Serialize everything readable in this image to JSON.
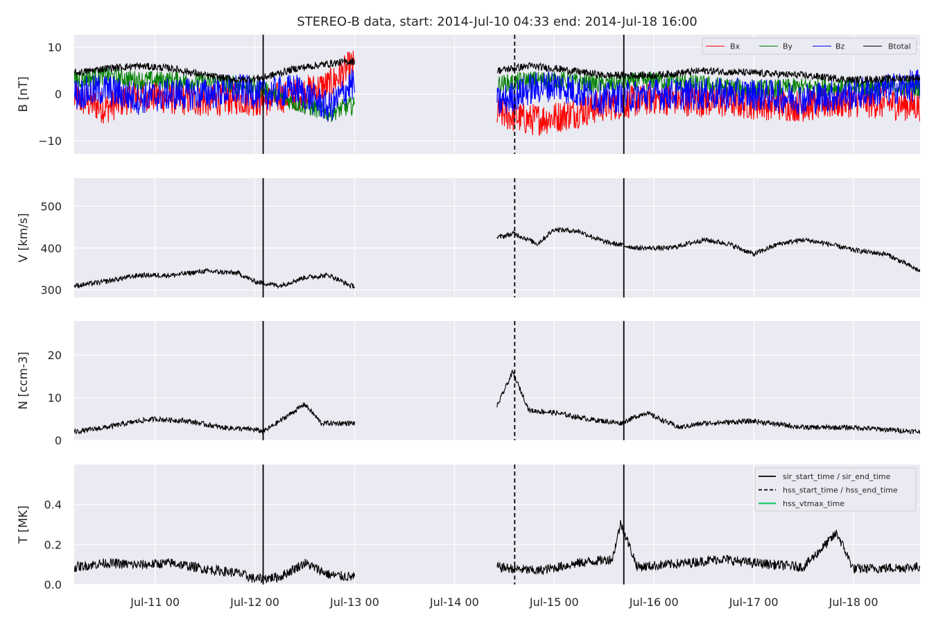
{
  "chart_data": {
    "type": "line",
    "title": "STEREO-B data, start: 2014-Jul-10 04:33  end: 2014-Jul-18 16:00",
    "x_start": "2014-07-10T04:33",
    "x_end": "2014-07-18T16:00",
    "x_ticks": [
      {
        "t": "2014-07-11T00:00",
        "label": "Jul-11 00"
      },
      {
        "t": "2014-07-12T00:00",
        "label": "Jul-12 00"
      },
      {
        "t": "2014-07-13T00:00",
        "label": "Jul-13 00"
      },
      {
        "t": "2014-07-14T00:00",
        "label": "Jul-14 00"
      },
      {
        "t": "2014-07-15T00:00",
        "label": "Jul-15 00"
      },
      {
        "t": "2014-07-16T00:00",
        "label": "Jul-16 00"
      },
      {
        "t": "2014-07-17T00:00",
        "label": "Jul-17 00"
      },
      {
        "t": "2014-07-18T00:00",
        "label": "Jul-18 00"
      }
    ],
    "grid": true,
    "data_segments": [
      {
        "start": "2014-07-10T04:33",
        "end": "2014-07-13T00:00"
      },
      {
        "start": "2014-07-14T10:15",
        "end": "2014-07-18T16:00"
      }
    ],
    "event_lines": [
      {
        "t": "2014-07-12T02:00",
        "style": "solid"
      },
      {
        "t": "2014-07-14T14:30",
        "style": "dashed"
      },
      {
        "t": "2014-07-15T16:45",
        "style": "solid"
      }
    ],
    "panels": [
      {
        "ylabel": "B [nT]",
        "ylim": [
          -12.8,
          12.7
        ],
        "yticks": [
          {
            "v": -10,
            "label": "−10"
          },
          {
            "v": 0,
            "label": "0"
          },
          {
            "v": 10,
            "label": "10"
          }
        ],
        "legend": {
          "placement": "top-right",
          "layout": "row"
        },
        "series": [
          {
            "name": "Bx",
            "color": "#ff0000",
            "points": [
              [
                "2014-07-10T05:00",
                -1
              ],
              [
                "2014-07-10T12:00",
                -3
              ],
              [
                "2014-07-10T20:00",
                0
              ],
              [
                "2014-07-11T04:00",
                -1
              ],
              [
                "2014-07-11T12:00",
                -1.5
              ],
              [
                "2014-07-11T20:00",
                -1
              ],
              [
                "2014-07-12T02:00",
                -1.5
              ],
              [
                "2014-07-12T10:00",
                0
              ],
              [
                "2014-07-12T18:00",
                2
              ],
              [
                "2014-07-12T23:00",
                6
              ],
              [
                "2014-07-14T10:15",
                -4
              ],
              [
                "2014-07-14T18:00",
                -5.5
              ],
              [
                "2014-07-15T00:00",
                -5
              ],
              [
                "2014-07-15T12:00",
                -2.5
              ],
              [
                "2014-07-16T00:00",
                -1
              ],
              [
                "2014-07-16T12:00",
                -1.5
              ],
              [
                "2014-07-17T00:00",
                -2
              ],
              [
                "2014-07-17T12:00",
                -2.5
              ],
              [
                "2014-07-18T00:00",
                -1.5
              ],
              [
                "2014-07-18T16:00",
                -2.5
              ]
            ]
          },
          {
            "name": "By",
            "color": "#008000",
            "points": [
              [
                "2014-07-10T05:00",
                3
              ],
              [
                "2014-07-10T12:00",
                4
              ],
              [
                "2014-07-10T20:00",
                3
              ],
              [
                "2014-07-11T04:00",
                3
              ],
              [
                "2014-07-11T12:00",
                2.5
              ],
              [
                "2014-07-11T20:00",
                2
              ],
              [
                "2014-07-12T02:00",
                1
              ],
              [
                "2014-07-12T10:00",
                -2
              ],
              [
                "2014-07-12T18:00",
                -4
              ],
              [
                "2014-07-12T23:00",
                -2.5
              ],
              [
                "2014-07-14T10:15",
                2
              ],
              [
                "2014-07-14T18:00",
                3
              ],
              [
                "2014-07-15T00:00",
                3
              ],
              [
                "2014-07-15T12:00",
                2
              ],
              [
                "2014-07-16T00:00",
                3
              ],
              [
                "2014-07-16T12:00",
                2
              ],
              [
                "2014-07-17T00:00",
                1
              ],
              [
                "2014-07-17T12:00",
                1.5
              ],
              [
                "2014-07-18T00:00",
                1.5
              ],
              [
                "2014-07-18T16:00",
                1.5
              ]
            ]
          },
          {
            "name": "Bz",
            "color": "#0000ff",
            "points": [
              [
                "2014-07-10T05:00",
                0
              ],
              [
                "2014-07-10T12:00",
                1
              ],
              [
                "2014-07-10T20:00",
                -1
              ],
              [
                "2014-07-11T04:00",
                0
              ],
              [
                "2014-07-11T12:00",
                0
              ],
              [
                "2014-07-11T20:00",
                1
              ],
              [
                "2014-07-12T02:00",
                0
              ],
              [
                "2014-07-12T10:00",
                1
              ],
              [
                "2014-07-12T18:00",
                -3
              ],
              [
                "2014-07-12T23:00",
                2
              ],
              [
                "2014-07-14T10:15",
                -2
              ],
              [
                "2014-07-14T18:00",
                1
              ],
              [
                "2014-07-15T00:00",
                2
              ],
              [
                "2014-07-15T12:00",
                -1
              ],
              [
                "2014-07-16T00:00",
                0
              ],
              [
                "2014-07-16T12:00",
                0
              ],
              [
                "2014-07-17T00:00",
                0
              ],
              [
                "2014-07-17T12:00",
                -1
              ],
              [
                "2014-07-18T00:00",
                0
              ],
              [
                "2014-07-18T16:00",
                2
              ]
            ]
          },
          {
            "name": "Btotal",
            "color": "#000000",
            "points": [
              [
                "2014-07-10T05:00",
                4.5
              ],
              [
                "2014-07-10T12:00",
                5.5
              ],
              [
                "2014-07-10T20:00",
                6
              ],
              [
                "2014-07-11T04:00",
                5.5
              ],
              [
                "2014-07-11T12:00",
                4
              ],
              [
                "2014-07-11T20:00",
                3
              ],
              [
                "2014-07-12T02:00",
                3.5
              ],
              [
                "2014-07-12T10:00",
                5.5
              ],
              [
                "2014-07-12T18:00",
                6.5
              ],
              [
                "2014-07-12T23:00",
                7
              ],
              [
                "2014-07-14T10:15",
                5
              ],
              [
                "2014-07-14T18:00",
                6
              ],
              [
                "2014-07-15T00:00",
                5.5
              ],
              [
                "2014-07-15T12:00",
                4
              ],
              [
                "2014-07-16T00:00",
                4
              ],
              [
                "2014-07-16T12:00",
                5
              ],
              [
                "2014-07-17T00:00",
                4.5
              ],
              [
                "2014-07-17T12:00",
                4
              ],
              [
                "2014-07-18T00:00",
                3
              ],
              [
                "2014-07-18T16:00",
                3.5
              ]
            ]
          }
        ]
      },
      {
        "ylabel": "V [km/s]",
        "ylim": [
          282,
          567
        ],
        "yticks": [
          {
            "v": 300,
            "label": "300"
          },
          {
            "v": 400,
            "label": "400"
          },
          {
            "v": 500,
            "label": "500"
          }
        ],
        "series": [
          {
            "name": "",
            "color": "#000000",
            "points": [
              [
                "2014-07-10T05:00",
                310
              ],
              [
                "2014-07-10T12:00",
                320
              ],
              [
                "2014-07-10T20:00",
                335
              ],
              [
                "2014-07-11T04:00",
                335
              ],
              [
                "2014-07-11T12:00",
                345
              ],
              [
                "2014-07-11T20:00",
                340
              ],
              [
                "2014-07-12T00:00",
                320
              ],
              [
                "2014-07-12T06:00",
                310
              ],
              [
                "2014-07-12T12:00",
                330
              ],
              [
                "2014-07-12T18:00",
                335
              ],
              [
                "2014-07-12T23:00",
                310
              ],
              [
                "2014-07-14T10:15",
                425
              ],
              [
                "2014-07-14T14:30",
                435
              ],
              [
                "2014-07-14T20:00",
                410
              ],
              [
                "2014-07-15T00:00",
                445
              ],
              [
                "2014-07-15T06:00",
                440
              ],
              [
                "2014-07-15T12:00",
                415
              ],
              [
                "2014-07-15T20:00",
                400
              ],
              [
                "2014-07-16T04:00",
                400
              ],
              [
                "2014-07-16T12:00",
                420
              ],
              [
                "2014-07-16T18:00",
                410
              ],
              [
                "2014-07-17T00:00",
                385
              ],
              [
                "2014-07-17T06:00",
                410
              ],
              [
                "2014-07-17T12:00",
                420
              ],
              [
                "2014-07-17T18:00",
                410
              ],
              [
                "2014-07-18T00:00",
                395
              ],
              [
                "2014-07-18T08:00",
                385
              ],
              [
                "2014-07-18T16:00",
                345
              ]
            ]
          }
        ]
      },
      {
        "ylabel": "N [ccm-3]",
        "ylim": [
          0,
          28
        ],
        "yticks": [
          {
            "v": 0,
            "label": "0"
          },
          {
            "v": 10,
            "label": "10"
          },
          {
            "v": 20,
            "label": "20"
          }
        ],
        "series": [
          {
            "name": "",
            "color": "#000000",
            "points": [
              [
                "2014-07-10T05:00",
                2
              ],
              [
                "2014-07-10T12:00",
                3
              ],
              [
                "2014-07-10T20:00",
                4.5
              ],
              [
                "2014-07-11T00:00",
                5
              ],
              [
                "2014-07-11T08:00",
                4.5
              ],
              [
                "2014-07-11T16:00",
                3
              ],
              [
                "2014-07-12T00:00",
                2.5
              ],
              [
                "2014-07-12T02:00",
                2
              ],
              [
                "2014-07-12T06:00",
                4.5
              ],
              [
                "2014-07-12T12:00",
                8.5
              ],
              [
                "2014-07-12T16:00",
                4
              ],
              [
                "2014-07-12T23:00",
                4
              ],
              [
                "2014-07-14T10:15",
                8
              ],
              [
                "2014-07-14T14:00",
                16
              ],
              [
                "2014-07-14T18:00",
                7
              ],
              [
                "2014-07-15T00:00",
                6.5
              ],
              [
                "2014-07-15T08:00",
                5
              ],
              [
                "2014-07-15T16:00",
                4
              ],
              [
                "2014-07-15T22:00",
                6.5
              ],
              [
                "2014-07-16T06:00",
                3
              ],
              [
                "2014-07-16T12:00",
                4
              ],
              [
                "2014-07-17T00:00",
                4.5
              ],
              [
                "2014-07-17T12:00",
                3
              ],
              [
                "2014-07-18T00:00",
                3
              ],
              [
                "2014-07-18T16:00",
                2
              ]
            ]
          }
        ]
      },
      {
        "ylabel": "T [MK]",
        "ylim": [
          0,
          0.6
        ],
        "yticks": [
          {
            "v": 0,
            "label": "0.0"
          },
          {
            "v": 0.2,
            "label": "0.2"
          },
          {
            "v": 0.4,
            "label": "0.4"
          }
        ],
        "legend": {
          "placement": "top-right",
          "layout": "column"
        },
        "legend_entries": [
          {
            "label": "sir_start_time / sir_end_time",
            "color": "#000000",
            "style": "solid"
          },
          {
            "label": "hss_start_time / hss_end_time",
            "color": "#000000",
            "style": "dashed"
          },
          {
            "label": "hss_vtmax_time",
            "color": "#2ecc71",
            "style": "solid"
          }
        ],
        "series": [
          {
            "name": "",
            "color": "#000000",
            "points": [
              [
                "2014-07-10T05:00",
                0.08
              ],
              [
                "2014-07-10T12:00",
                0.1
              ],
              [
                "2014-07-10T20:00",
                0.09
              ],
              [
                "2014-07-11T04:00",
                0.1
              ],
              [
                "2014-07-11T12:00",
                0.07
              ],
              [
                "2014-07-11T20:00",
                0.05
              ],
              [
                "2014-07-12T00:00",
                0.02
              ],
              [
                "2014-07-12T06:00",
                0.03
              ],
              [
                "2014-07-12T12:00",
                0.1
              ],
              [
                "2014-07-12T18:00",
                0.04
              ],
              [
                "2014-07-12T23:00",
                0.03
              ],
              [
                "2014-07-14T10:15",
                0.08
              ],
              [
                "2014-07-14T20:00",
                0.06
              ],
              [
                "2014-07-15T06:00",
                0.1
              ],
              [
                "2014-07-15T14:00",
                0.12
              ],
              [
                "2014-07-15T16:00",
                0.3
              ],
              [
                "2014-07-15T20:00",
                0.08
              ],
              [
                "2014-07-16T08:00",
                0.1
              ],
              [
                "2014-07-16T16:00",
                0.12
              ],
              [
                "2014-07-17T00:00",
                0.1
              ],
              [
                "2014-07-17T12:00",
                0.08
              ],
              [
                "2014-07-17T20:00",
                0.25
              ],
              [
                "2014-07-18T00:00",
                0.07
              ],
              [
                "2014-07-18T16:00",
                0.08
              ]
            ]
          }
        ]
      }
    ]
  }
}
